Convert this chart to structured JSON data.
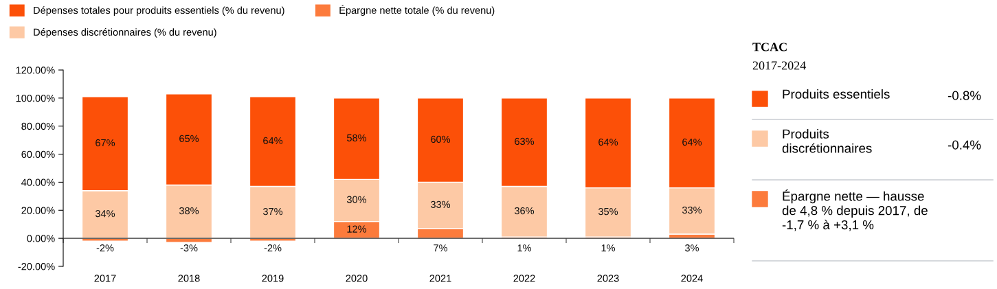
{
  "chart_data": [
    {
      "type": "bar",
      "stacked": true,
      "categories": [
        "2017",
        "2018",
        "2019",
        "2020",
        "2021",
        "2022",
        "2023",
        "2024"
      ],
      "series": [
        {
          "name": "Épargne nette totale (% du revenu)",
          "color": "#fc7b3c",
          "values": [
            -2,
            -3,
            -2,
            12,
            7,
            1,
            1,
            3
          ],
          "value_labels": [
            "-2%",
            "-3%",
            "-2%",
            "12%",
            "7%",
            "1%",
            "1%",
            "3%"
          ]
        },
        {
          "name": "Dépenses discrétionnaires (% du revenu)",
          "color": "#fdc9a5",
          "values": [
            34,
            38,
            37,
            30,
            33,
            36,
            35,
            33
          ],
          "value_labels": [
            "34%",
            "38%",
            "37%",
            "30%",
            "33%",
            "36%",
            "35%",
            "33%"
          ]
        },
        {
          "name": "Dépenses totales pour produits essentiels (% du revenu)",
          "color": "#fc5008",
          "values": [
            67,
            65,
            64,
            58,
            60,
            63,
            64,
            64
          ],
          "value_labels": [
            "67%",
            "65%",
            "64%",
            "58%",
            "60%",
            "63%",
            "64%",
            "64%"
          ]
        }
      ],
      "ylim": [
        -20,
        120
      ],
      "yticks": [
        {
          "value": -20,
          "label": "-20.00%"
        },
        {
          "value": 0,
          "label": "0.00%"
        },
        {
          "value": 20,
          "label": "20.00%"
        },
        {
          "value": 40,
          "label": "40.00%"
        },
        {
          "value": 60,
          "label": "60.00%"
        },
        {
          "value": 80,
          "label": "80.00%"
        },
        {
          "value": 100,
          "label": "100.00%"
        },
        {
          "value": 120,
          "label": "120.00%"
        }
      ],
      "ref_lines": [
        {
          "axis": "y",
          "value": 0,
          "color": "#333333",
          "line_style": "solid"
        }
      ],
      "grid": false,
      "legend": "top"
    },
    {
      "type": "other",
      "title": "TCAC",
      "subtitle": "2017-2024",
      "categories": [
        "Produits essentiels",
        "Produits\ndiscrétionnaires",
        "Épargne nette — hausse\nde 4,8 % depuis 2017, de\n-1,7 % à +3,1 %"
      ],
      "value_labels": [
        "-0.8%",
        "-0.4%",
        null
      ],
      "colors": [
        "#fc5008",
        "#fdc9a5",
        "#fc7b3c"
      ]
    }
  ]
}
